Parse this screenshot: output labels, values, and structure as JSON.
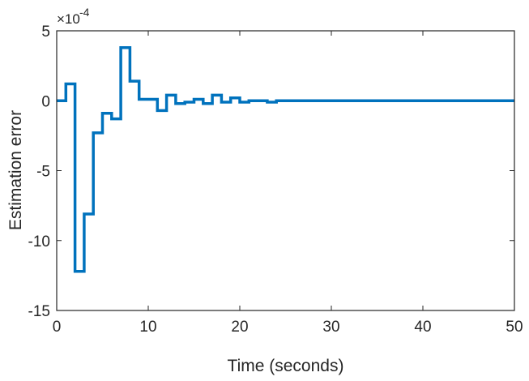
{
  "chart_data": {
    "type": "line",
    "style": "step",
    "xlabel": "Time (seconds)",
    "ylabel": "Estimation error",
    "y_scale_multiplier": "×10^-4",
    "y_exponent_base": "×10",
    "y_exponent": "-4",
    "xlim": [
      0,
      50
    ],
    "ylim": [
      -15,
      5
    ],
    "x_ticks": [
      "0",
      "10",
      "20",
      "30",
      "40",
      "50"
    ],
    "y_ticks": [
      "-15",
      "-10",
      "-5",
      "0",
      "5"
    ],
    "grid": false,
    "box": true,
    "line_color": "#0072BD",
    "series": [
      {
        "x": [
          0,
          1,
          2,
          3,
          4,
          5,
          6,
          7,
          8,
          9,
          10,
          11,
          12,
          13,
          14,
          15,
          16,
          17,
          18,
          19,
          20,
          21,
          22,
          23,
          24,
          50
        ],
        "y": [
          0,
          1.2,
          -12.2,
          -8.1,
          -2.3,
          -0.9,
          -1.3,
          3.8,
          1.4,
          0.1,
          0.1,
          -0.7,
          0.4,
          -0.2,
          -0.1,
          0.1,
          -0.2,
          0.4,
          -0.1,
          0.2,
          -0.1,
          0.0,
          0.0,
          -0.1,
          0.0,
          0.0
        ]
      }
    ]
  }
}
